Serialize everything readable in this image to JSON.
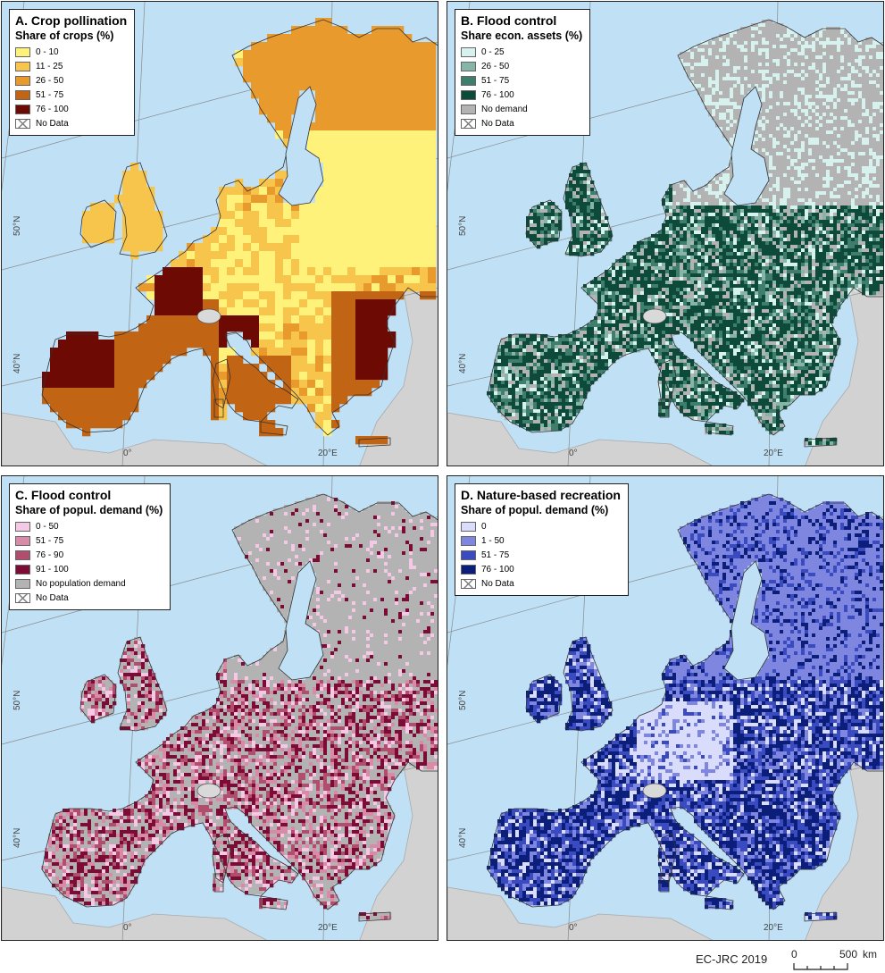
{
  "panels": [
    {
      "id": "a",
      "title": "A. Crop pollination",
      "subtitle": "Share of crops (%)",
      "legend": [
        {
          "label": "0 - 10",
          "color": "#fff27a"
        },
        {
          "label": "11 - 25",
          "color": "#f7c44c"
        },
        {
          "label": "26 - 50",
          "color": "#e89a2c"
        },
        {
          "label": "51 - 75",
          "color": "#c16413"
        },
        {
          "label": "76 - 100",
          "color": "#6e0a04"
        },
        {
          "label": "No Data",
          "color": "nodata"
        }
      ],
      "palette": [
        "#fff27a",
        "#f7c44c",
        "#e89a2c",
        "#c16413",
        "#6e0a04"
      ]
    },
    {
      "id": "b",
      "title": "B. Flood control",
      "subtitle": "Share econ. assets (%)",
      "legend": [
        {
          "label": "0 - 25",
          "color": "#d7f2ee"
        },
        {
          "label": "26 - 50",
          "color": "#86b5a8"
        },
        {
          "label": "51 - 75",
          "color": "#3f7d6c"
        },
        {
          "label": "76 - 100",
          "color": "#0d4a3a"
        },
        {
          "label": "No demand",
          "color": "#b3b3b3"
        },
        {
          "label": "No Data",
          "color": "nodata"
        }
      ],
      "palette": [
        "#d7f2ee",
        "#86b5a8",
        "#3f7d6c",
        "#0d4a3a",
        "#b3b3b3"
      ]
    },
    {
      "id": "c",
      "title": "C. Flood control",
      "subtitle": "Share of popul. demand (%)",
      "legend": [
        {
          "label": "0 - 50",
          "color": "#f5c8e6"
        },
        {
          "label": "51 - 75",
          "color": "#d98aa6"
        },
        {
          "label": "76 - 90",
          "color": "#b14d6d"
        },
        {
          "label": "91 - 100",
          "color": "#7c0c36"
        },
        {
          "label": "No population demand",
          "color": "#b3b3b3"
        },
        {
          "label": "No Data",
          "color": "nodata"
        }
      ],
      "palette": [
        "#f5c8e6",
        "#d98aa6",
        "#b14d6d",
        "#7c0c36",
        "#b3b3b3"
      ]
    },
    {
      "id": "d",
      "title": "D. Nature-based recreation",
      "subtitle": "Share of popul. demand (%)",
      "legend": [
        {
          "label": "0",
          "color": "#d9dcfa"
        },
        {
          "label": "1 - 50",
          "color": "#7e86e0"
        },
        {
          "label": "51 - 75",
          "color": "#3a4bc2"
        },
        {
          "label": "76 - 100",
          "color": "#0b1f7a"
        },
        {
          "label": "No Data",
          "color": "nodata"
        }
      ],
      "palette": [
        "#d9dcfa",
        "#7e86e0",
        "#3a4bc2",
        "#0b1f7a"
      ]
    }
  ],
  "grid_labels": {
    "lat_50": "50°N",
    "lat_40": "40°N",
    "lon_0": "0°",
    "lon_20": "20°E"
  },
  "colors": {
    "sea": "#bfe0f5",
    "land_outside": "#d2d2d2",
    "border": "#333333"
  },
  "footer": {
    "credit": "EC-JRC 2019",
    "scale_start": "0",
    "scale_end": "500",
    "scale_unit": "km"
  }
}
